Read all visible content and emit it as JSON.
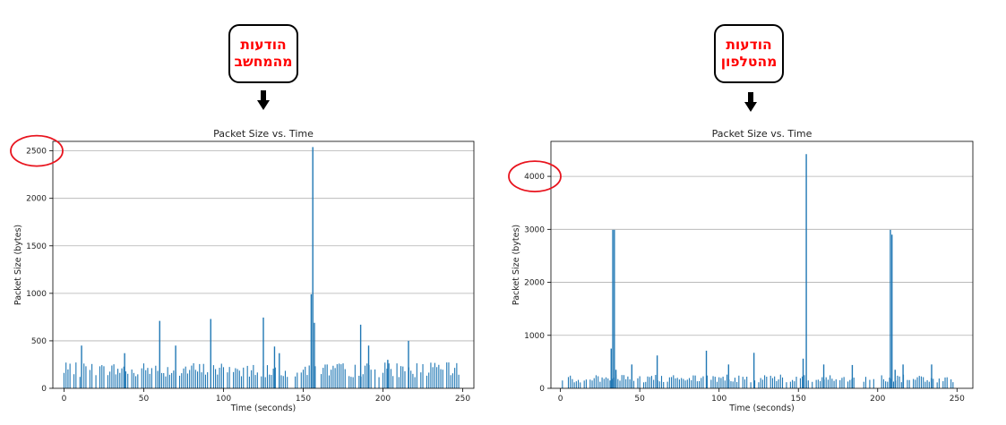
{
  "callouts": [
    {
      "line1": "הודעות",
      "line2": "מהמחשב"
    },
    {
      "line1": "הודעות",
      "line2": "מהטלפון"
    }
  ],
  "colors": {
    "bar": "#1f77b4",
    "grid": "#b0b0b0",
    "callout_text": "#ff0000",
    "highlight": "#e8141e"
  },
  "chart_data": [
    {
      "type": "bar",
      "title": "Packet Size vs. Time",
      "xlabel": "Time (seconds)",
      "ylabel": "Packet Size (bytes)",
      "xlim": [
        -7,
        257
      ],
      "ylim": [
        0,
        2600
      ],
      "xticks": [
        0,
        50,
        100,
        150,
        200,
        250
      ],
      "yticks": [
        0,
        500,
        1000,
        1500,
        2000,
        2500
      ],
      "grid": "horizontal",
      "highlighted_tick": 2500,
      "baseline": 210,
      "spikes": [
        [
          11,
          450
        ],
        [
          38,
          370
        ],
        [
          60,
          710
        ],
        [
          70,
          450
        ],
        [
          92,
          730
        ],
        [
          125,
          745
        ],
        [
          132,
          440
        ],
        [
          135,
          370
        ],
        [
          155,
          990
        ],
        [
          156,
          2540
        ],
        [
          157,
          690
        ],
        [
          186,
          670
        ],
        [
          191,
          450
        ],
        [
          203,
          300
        ],
        [
          216,
          500
        ]
      ]
    },
    {
      "type": "bar",
      "title": "Packet Size vs. Time",
      "xlabel": "Time (seconds)",
      "ylabel": "Packet Size (bytes)",
      "xlim": [
        -6,
        260
      ],
      "ylim": [
        0,
        4660
      ],
      "xticks": [
        0,
        50,
        100,
        150,
        200,
        250
      ],
      "yticks": [
        0,
        1000,
        2000,
        3000,
        4000
      ],
      "grid": "horizontal",
      "highlighted_tick": 4000,
      "baseline": 200,
      "spikes": [
        [
          32,
          750
        ],
        [
          33,
          2990
        ],
        [
          34,
          2990
        ],
        [
          35,
          350
        ],
        [
          45,
          450
        ],
        [
          61,
          620
        ],
        [
          92,
          710
        ],
        [
          106,
          450
        ],
        [
          122,
          670
        ],
        [
          153,
          560
        ],
        [
          155,
          4420
        ],
        [
          166,
          450
        ],
        [
          184,
          440
        ],
        [
          208,
          2990
        ],
        [
          209,
          2900
        ],
        [
          211,
          350
        ],
        [
          216,
          450
        ],
        [
          234,
          450
        ]
      ]
    }
  ]
}
